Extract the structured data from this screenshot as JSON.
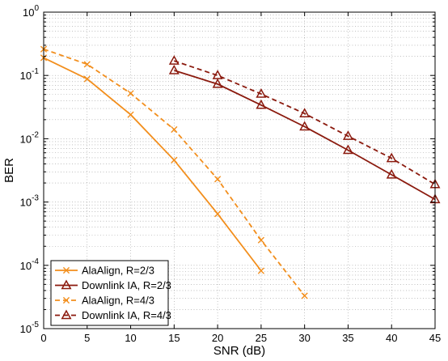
{
  "chart_data": {
    "type": "line",
    "title": "",
    "xlabel": "SNR (dB)",
    "ylabel": "BER",
    "xlim": [
      0,
      45
    ],
    "ylim_exp": [
      -5,
      0
    ],
    "yscale": "log",
    "grid": "dotted",
    "legend_position": "bottom-left",
    "x_ticks": [
      0,
      5,
      10,
      15,
      20,
      25,
      30,
      35,
      40,
      45
    ],
    "y_tick_base": "10",
    "y_tick_exponents": [
      "-5",
      "-4",
      "-3",
      "-2",
      "-1",
      "0"
    ],
    "series": [
      {
        "name": "AlaAlign, R=2/3",
        "color": "#F28E1C",
        "line": "solid",
        "marker": "x",
        "x": [
          0,
          5,
          10,
          15,
          20,
          25
        ],
        "y": [
          0.19,
          0.088,
          0.024,
          0.0046,
          0.00065,
          8.2e-05
        ]
      },
      {
        "name": "Downlink IA, R=2/3",
        "color": "#8B1A0E",
        "line": "solid",
        "marker": "triangle",
        "x": [
          15,
          20,
          25,
          30,
          35,
          40,
          45
        ],
        "y": [
          0.12,
          0.073,
          0.034,
          0.0155,
          0.0066,
          0.0027,
          0.0011
        ]
      },
      {
        "name": "AlaAlign, R=4/3",
        "color": "#F28E1C",
        "line": "dashed",
        "marker": "x",
        "x": [
          0,
          5,
          10,
          15,
          20,
          25,
          30
        ],
        "y": [
          0.26,
          0.15,
          0.052,
          0.014,
          0.0023,
          0.00025,
          3.3e-05
        ]
      },
      {
        "name": "Downlink IA, R=4/3",
        "color": "#8B1A0E",
        "line": "dashed",
        "marker": "triangle",
        "x": [
          15,
          20,
          25,
          30,
          35,
          40,
          45
        ],
        "y": [
          0.17,
          0.1,
          0.051,
          0.025,
          0.011,
          0.0049,
          0.0019
        ]
      }
    ]
  }
}
